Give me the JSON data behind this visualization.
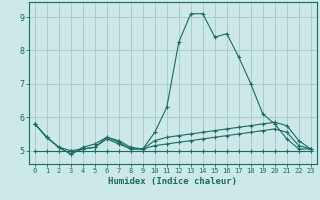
{
  "xlabel": "Humidex (Indice chaleur)",
  "background_color": "#cce8e8",
  "grid_color": "#aacccc",
  "line_color": "#1a6b60",
  "xlim": [
    -0.5,
    23.5
  ],
  "ylim": [
    4.6,
    9.45
  ],
  "xticks": [
    0,
    1,
    2,
    3,
    4,
    5,
    6,
    7,
    8,
    9,
    10,
    11,
    12,
    13,
    14,
    15,
    16,
    17,
    18,
    19,
    20,
    21,
    22,
    23
  ],
  "yticks": [
    5,
    6,
    7,
    8,
    9
  ],
  "series": [
    {
      "x": [
        0,
        1,
        2,
        3,
        4,
        5,
        6,
        7,
        8,
        9,
        10,
        11,
        12,
        13,
        14,
        15,
        16,
        17,
        18,
        19,
        20,
        21,
        22,
        23
      ],
      "y": [
        5.8,
        5.4,
        5.1,
        4.9,
        5.1,
        5.2,
        5.4,
        5.3,
        5.1,
        5.05,
        5.55,
        6.3,
        8.25,
        9.1,
        9.1,
        8.4,
        8.5,
        7.8,
        7.0,
        6.1,
        5.8,
        5.35,
        5.05,
        5.05
      ]
    },
    {
      "x": [
        0,
        1,
        2,
        3,
        4,
        5,
        6,
        7,
        8,
        9,
        10,
        11,
        12,
        13,
        14,
        15,
        16,
        17,
        18,
        19,
        20,
        21,
        22,
        23
      ],
      "y": [
        5.8,
        5.4,
        5.1,
        4.9,
        5.05,
        5.1,
        5.4,
        5.25,
        5.05,
        5.05,
        5.3,
        5.4,
        5.45,
        5.5,
        5.55,
        5.6,
        5.65,
        5.7,
        5.75,
        5.8,
        5.85,
        5.75,
        5.3,
        5.05
      ]
    },
    {
      "x": [
        0,
        1,
        2,
        3,
        4,
        5,
        6,
        7,
        8,
        9,
        10,
        11,
        12,
        13,
        14,
        15,
        16,
        17,
        18,
        19,
        20,
        21,
        22,
        23
      ],
      "y": [
        5.0,
        5.0,
        5.0,
        5.0,
        5.0,
        5.0,
        5.0,
        5.0,
        5.0,
        5.0,
        5.0,
        5.0,
        5.0,
        5.0,
        5.0,
        5.0,
        5.0,
        5.0,
        5.0,
        5.0,
        5.0,
        5.0,
        5.0,
        5.0
      ]
    },
    {
      "x": [
        0,
        1,
        2,
        3,
        4,
        5,
        6,
        7,
        8,
        9,
        10,
        11,
        12,
        13,
        14,
        15,
        16,
        17,
        18,
        19,
        20,
        21,
        22,
        23
      ],
      "y": [
        5.8,
        5.4,
        5.1,
        5.0,
        5.05,
        5.1,
        5.35,
        5.2,
        5.05,
        5.05,
        5.15,
        5.2,
        5.25,
        5.3,
        5.35,
        5.4,
        5.45,
        5.5,
        5.55,
        5.6,
        5.65,
        5.55,
        5.15,
        5.05
      ]
    }
  ]
}
